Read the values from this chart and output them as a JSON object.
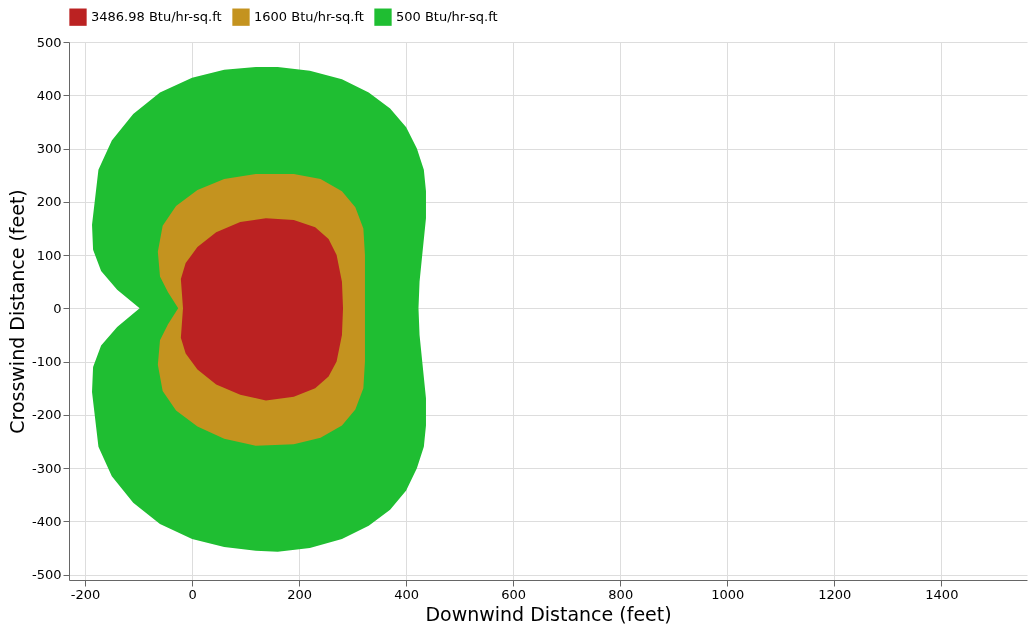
{
  "chart_data": {
    "type": "area",
    "xlabel": "Downwind Distance (feet)",
    "ylabel": "Crosswind Distance (feet)",
    "xlim": [
      -230,
      1560
    ],
    "xticks": [
      -200,
      0,
      200,
      400,
      600,
      800,
      1000,
      1200,
      1400
    ],
    "ylim": [
      -510,
      500
    ],
    "yticks": [
      -500,
      -400,
      -300,
      -200,
      -100,
      0,
      100,
      200,
      300,
      400,
      500
    ],
    "grid": true,
    "legend": "top left",
    "series": [
      {
        "name": "500 Btu/hr-sq.ft",
        "color": "#1fbe32",
        "x": [
          423,
          425,
          430,
          437,
          437,
          433,
          420,
          400,
          370,
          330,
          280,
          220,
          160,
          119,
          60,
          0,
          -60,
          -110,
          -150,
          -175,
          -187,
          -185,
          -170,
          -140,
          -98,
          -140,
          -170,
          -185,
          -187,
          -175,
          -150,
          -110,
          -60,
          0,
          60,
          119,
          160,
          220,
          280,
          330,
          370,
          400,
          420,
          433,
          437,
          437,
          430,
          425,
          423
        ],
        "values": [
          0,
          50,
          100,
          169,
          220,
          260,
          300,
          340,
          375,
          405,
          430,
          446,
          453,
          453,
          448,
          433,
          405,
          365,
          315,
          260,
          157,
          110,
          70,
          35,
          0,
          -35,
          -70,
          -110,
          -157,
          -260,
          -315,
          -365,
          -405,
          -433,
          -448,
          -455,
          -457,
          -450,
          -433,
          -408,
          -378,
          -342,
          -300,
          -260,
          -220,
          -169,
          -100,
          -50,
          0
        ]
      },
      {
        "name": "1600 Btu/hr-sq.ft",
        "color": "#c4931f",
        "x": [
          323,
          323,
          320,
          305,
          280,
          240,
          190,
          119,
          60,
          10,
          -30,
          -55,
          -64,
          -60,
          -45,
          -26,
          -45,
          -60,
          -64,
          -55,
          -30,
          10,
          60,
          119,
          190,
          240,
          280,
          305,
          320,
          323,
          323
        ],
        "values": [
          0,
          100,
          150,
          190,
          220,
          243,
          252,
          252,
          243,
          222,
          192,
          155,
          106,
          60,
          30,
          0,
          -30,
          -60,
          -106,
          -155,
          -192,
          -222,
          -245,
          -258,
          -255,
          -243,
          -220,
          -190,
          -150,
          -100,
          0
        ]
      },
      {
        "name": "3486.98 Btu/hr-sq.ft",
        "color": "#bb2222",
        "x": [
          282,
          280,
          270,
          255,
          230,
          190,
          138,
          90,
          45,
          10,
          -12,
          -21,
          -17,
          -21,
          -12,
          10,
          45,
          90,
          138,
          190,
          230,
          255,
          270,
          280,
          282
        ],
        "values": [
          0,
          50,
          100,
          130,
          152,
          166,
          169,
          162,
          143,
          115,
          85,
          55,
          0,
          -55,
          -85,
          -115,
          -143,
          -162,
          -173,
          -166,
          -150,
          -128,
          -100,
          -50,
          0
        ]
      }
    ]
  }
}
